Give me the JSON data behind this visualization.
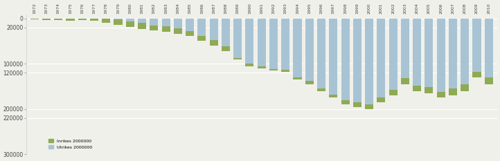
{
  "years": [
    1972,
    1973,
    1974,
    1975,
    1976,
    1977,
    1978,
    1979,
    1980,
    1981,
    1982,
    1983,
    1984,
    1985,
    1986,
    1987,
    1988,
    1989,
    1990,
    1991,
    1992,
    1993,
    1994,
    1995,
    1996,
    1997,
    1998,
    1999,
    2000,
    2001,
    2002,
    2003,
    2004,
    2005,
    2006,
    2007,
    2008,
    2009,
    2010
  ],
  "total_vals": [
    2000,
    3500,
    3000,
    4500,
    3500,
    5000,
    10000,
    14000,
    19000,
    23000,
    27000,
    30000,
    34000,
    38000,
    50000,
    60000,
    72000,
    90000,
    105000,
    110000,
    115000,
    118000,
    135000,
    145000,
    160000,
    175000,
    190000,
    195000,
    200000,
    185000,
    170000,
    145000,
    160000,
    165000,
    175000,
    170000,
    160000,
    130000,
    145000
  ],
  "utrikes_vals": [
    0,
    0,
    0,
    0,
    0,
    0,
    0,
    2000,
    7000,
    10000,
    15000,
    18000,
    22000,
    28000,
    38000,
    48000,
    62000,
    88000,
    100000,
    105000,
    112000,
    114000,
    130000,
    138000,
    155000,
    168000,
    180000,
    185000,
    190000,
    174000,
    158000,
    132000,
    148000,
    152000,
    162000,
    155000,
    145000,
    118000,
    130000
  ],
  "inrikes_color": "#8faa54",
  "utrikes_color": "#a8c4d4",
  "background_color": "#f0f0eb",
  "legend_inrikes": "Inrikes 2000000",
  "legend_utrikes": "Utrikes 2000000",
  "bar_width": 0.7,
  "ytick_vals": [
    0,
    -20000,
    -100000,
    -120000,
    -200000,
    -220000,
    -300000
  ],
  "ytick_labels": [
    "0",
    "20000",
    "100000",
    "120000",
    "200000",
    "220000",
    "300000"
  ],
  "ylim": [
    -300000,
    8000
  ]
}
